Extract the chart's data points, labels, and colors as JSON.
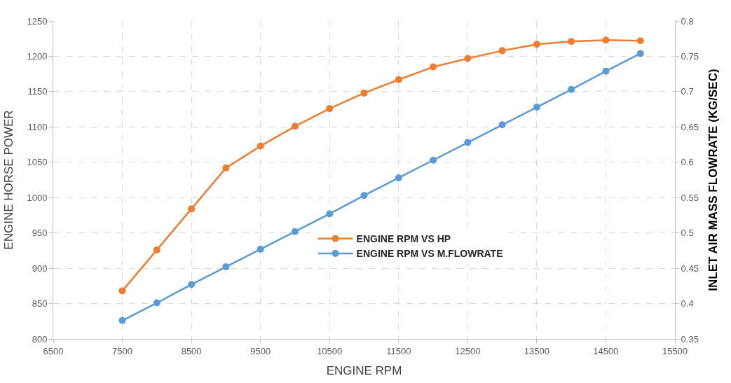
{
  "chart_data": {
    "type": "line",
    "xlabel": "ENGINE RPM",
    "ylabel": "ENGINE HORSE POWER",
    "y2label": "INLET AIR MASS FLOWRATE (KG/SEC)",
    "x": [
      7500,
      8000,
      8500,
      9000,
      9500,
      10000,
      10500,
      11000,
      11500,
      12000,
      12500,
      13000,
      13500,
      14000,
      14500,
      15000
    ],
    "series": [
      {
        "name": "ENGINE RPM VS HP",
        "color": "#ed7d31",
        "values": [
          868,
          926,
          984,
          1042,
          1073,
          1101,
          1126,
          1148,
          1167,
          1185,
          1197,
          1208,
          1217,
          1221,
          1223,
          1222
        ]
      },
      {
        "name": "ENGINE RPM VS M.FLOWRATE",
        "color": "#5b9bd5",
        "axis": "y2",
        "values": [
          0.376,
          0.401,
          0.427,
          0.452,
          0.477,
          0.502,
          0.527,
          0.553,
          0.578,
          0.603,
          0.628,
          0.653,
          0.678,
          0.703,
          0.729,
          0.754
        ]
      }
    ],
    "xlim": [
      6500,
      15500
    ],
    "xticks": [
      6500,
      7500,
      8500,
      9500,
      10500,
      11500,
      12500,
      13500,
      14500,
      15500
    ],
    "ylim": [
      800,
      1250
    ],
    "yticks": [
      800,
      850,
      900,
      950,
      1000,
      1050,
      1100,
      1150,
      1200,
      1250
    ],
    "y2lim": [
      0.35,
      0.8
    ],
    "y2ticks": [
      0.35,
      0.4,
      0.45,
      0.5,
      0.55,
      0.6,
      0.65,
      0.7,
      0.75,
      0.8
    ],
    "grid": true,
    "legend": "bottom right",
    "marker": "circle",
    "line_style": "solid"
  }
}
